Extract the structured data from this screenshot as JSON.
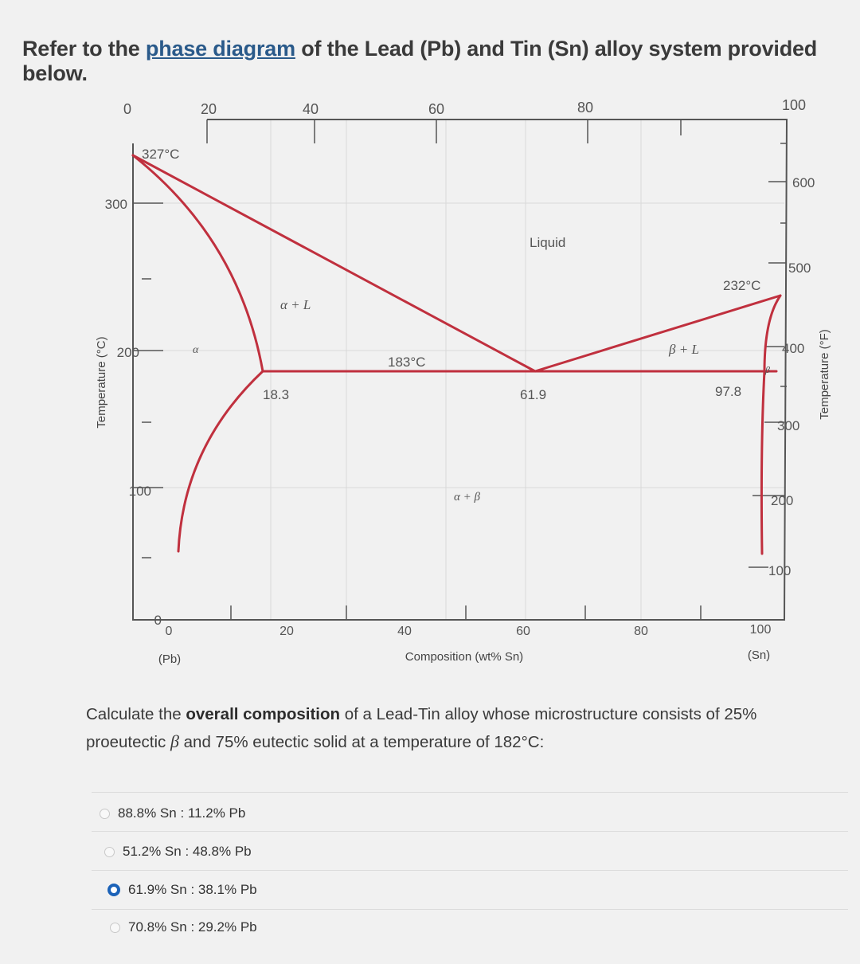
{
  "intro": {
    "before": "Refer to the ",
    "link": "phase diagram",
    "after": " of the Lead (Pb) and Tin (Sn) alloy system provided below."
  },
  "diagram": {
    "top_ticks": [
      "0",
      "20",
      "40",
      "60",
      "80",
      "100"
    ],
    "bottom_ticks": [
      "0",
      "20",
      "40",
      "60",
      "80",
      "100"
    ],
    "left_ticks": [
      "300",
      "200",
      "100",
      "0"
    ],
    "right_ticks": [
      "600",
      "500",
      "400",
      "300",
      "200",
      "100"
    ],
    "left_axis_label": "Temperature (°C)",
    "right_axis_label": "Temperature (°F)",
    "x_axis_label": "Composition (wt% Sn)",
    "pb_label": "(Pb)",
    "sn_label": "(Sn)",
    "labels": {
      "pb_melt": "327°C",
      "sn_melt": "232°C",
      "eutectic_temp": "183°C",
      "liquid": "Liquid",
      "alpha_l": "α + L",
      "beta_l": "β + L",
      "alpha": "α",
      "beta": "β",
      "alpha_beta": "α + β",
      "c_alpha": "18.3",
      "c_e": "61.9",
      "c_beta": "97.8"
    },
    "colors": {
      "phase_line": "#c0303e",
      "frame": "#555555"
    }
  },
  "question": {
    "part1": "Calculate the ",
    "bold": "overall composition",
    "part2": " of a Lead-Tin alloy whose microstructure consists of 25% proeutectic ",
    "beta": "β",
    "part3": " and 75% eutectic solid at a temperature of 182°C:"
  },
  "options": [
    {
      "label": "88.8% Sn : 11.2% Pb",
      "selected": false
    },
    {
      "label": "51.2% Sn : 48.8% Pb",
      "selected": false
    },
    {
      "label": "61.9% Sn : 38.1% Pb",
      "selected": true
    },
    {
      "label": "70.8% Sn : 29.2% Pb",
      "selected": false
    }
  ]
}
